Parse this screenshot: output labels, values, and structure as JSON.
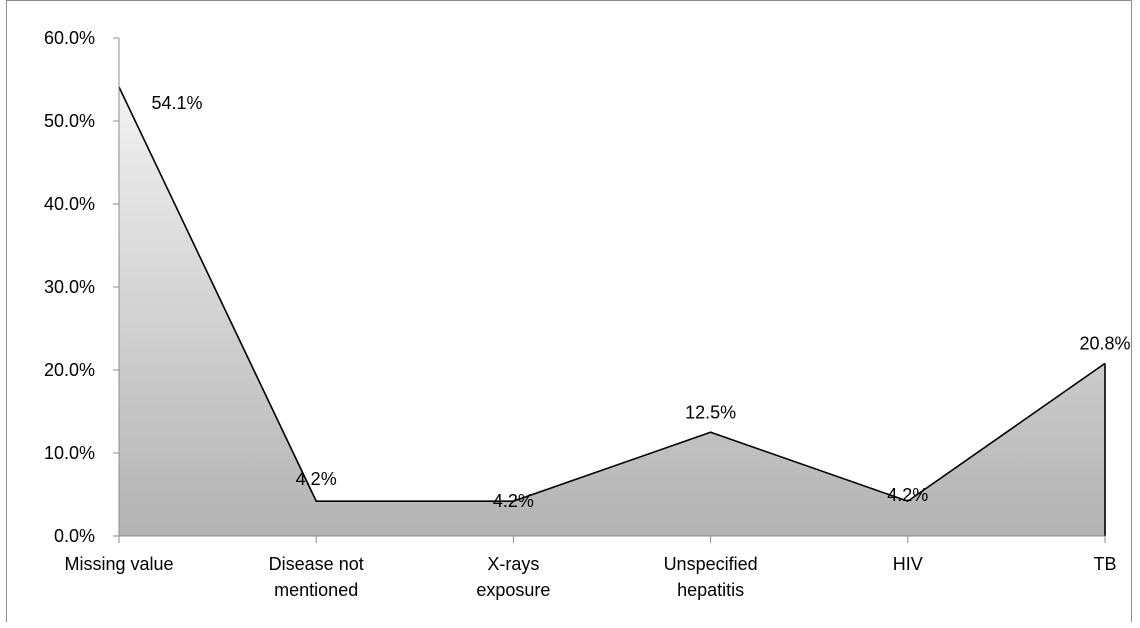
{
  "chart_data": {
    "type": "area",
    "title": "",
    "xlabel": "",
    "ylabel": "",
    "categories": [
      [
        "Missing value"
      ],
      [
        "Disease not",
        "mentioned"
      ],
      [
        "X-rays",
        "exposure"
      ],
      [
        "Unspecified",
        "hepatitis"
      ],
      [
        "HIV"
      ],
      [
        "TB"
      ]
    ],
    "values": [
      54.1,
      4.2,
      4.2,
      12.5,
      4.2,
      20.8
    ],
    "data_labels": [
      "54.1%",
      "4.2%",
      "4.2%",
      "12.5%",
      "4.2%",
      "20.8%"
    ],
    "ylim": [
      0,
      60
    ],
    "yticks": [
      0,
      10,
      20,
      30,
      40,
      50,
      60
    ],
    "ytick_labels": [
      "0.0%",
      "10.0%",
      "20.0%",
      "30.0%",
      "40.0%",
      "50.0%",
      "60.0%"
    ],
    "grid": false,
    "legend": "none",
    "colors": {
      "fill_top": "#f2f2f2",
      "fill_bottom": "#b3b3b3",
      "line": "#000000",
      "axis": "#8c8c8c"
    }
  }
}
